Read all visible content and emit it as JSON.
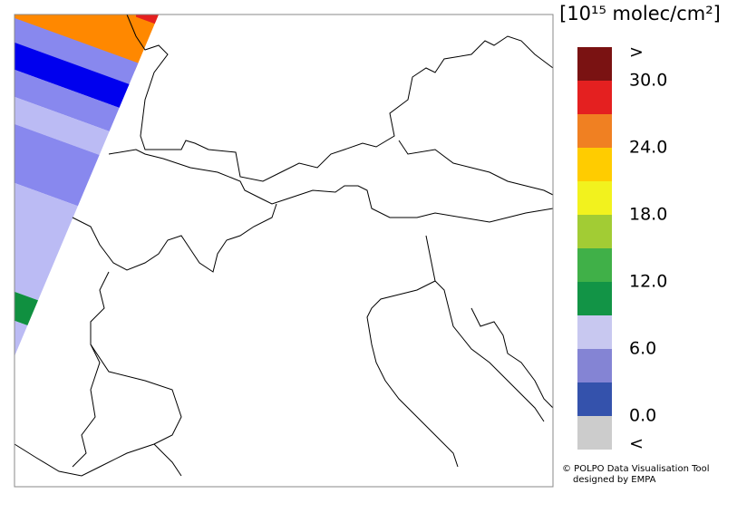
{
  "legend": {
    "title": "[10¹⁵ molec/cm²]",
    "colors": [
      "#7a1212",
      "#e42020",
      "#f08022",
      "#ffcc00",
      "#f2f21e",
      "#a2cc34",
      "#40b048",
      "#129446",
      "#c8c8f0",
      "#8484d4",
      "#3452ac",
      "#cccccc"
    ],
    "labels": [
      ">",
      "30.0",
      "24.0",
      "18.0",
      "12.0",
      "6.0",
      "0.0",
      "<"
    ]
  },
  "footer": {
    "line1": "© POLPO Data Visualisation Tool",
    "line2": "designed by EMPA"
  }
}
